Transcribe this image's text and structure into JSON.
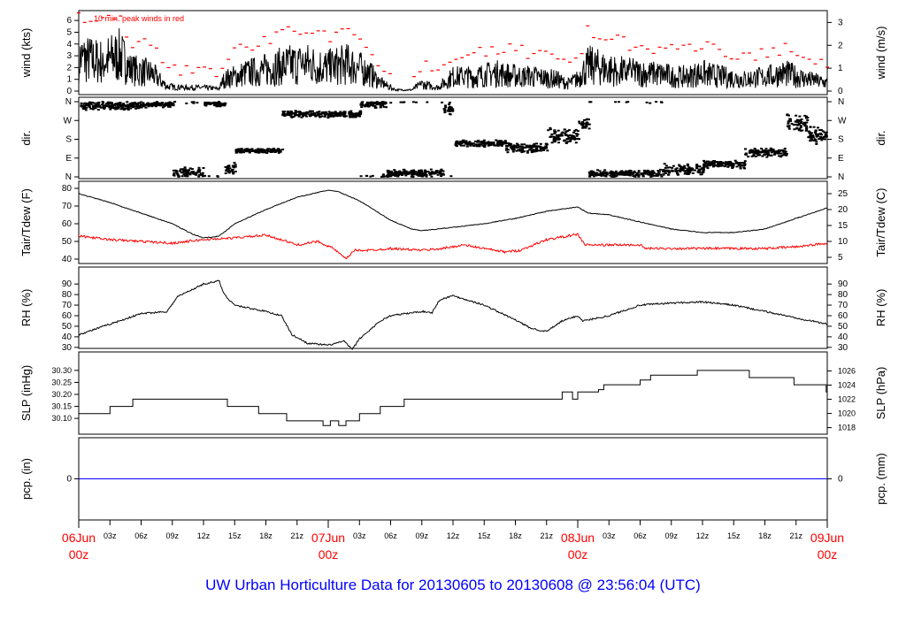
{
  "chart_data": {
    "type": "line",
    "title": "UW Urban Horticulture Data for 20130605  to  20130608 @ 23:56:04  (UTC)",
    "x_hours": [
      0,
      72
    ],
    "x_ticks": [
      {
        "h": 0,
        "label": "06Jun",
        "sub": "00z",
        "major": true
      },
      {
        "h": 3,
        "label": "03z"
      },
      {
        "h": 6,
        "label": "06z"
      },
      {
        "h": 9,
        "label": "09z"
      },
      {
        "h": 12,
        "label": "12z"
      },
      {
        "h": 15,
        "label": "15z"
      },
      {
        "h": 18,
        "label": "18z"
      },
      {
        "h": 21,
        "label": "21z"
      },
      {
        "h": 24,
        "label": "07Jun",
        "sub": "00z",
        "major": true
      },
      {
        "h": 27,
        "label": "03z"
      },
      {
        "h": 30,
        "label": "06z"
      },
      {
        "h": 33,
        "label": "09z"
      },
      {
        "h": 36,
        "label": "12z"
      },
      {
        "h": 39,
        "label": "15z"
      },
      {
        "h": 42,
        "label": "18z"
      },
      {
        "h": 45,
        "label": "21z"
      },
      {
        "h": 48,
        "label": "08Jun",
        "sub": "00z",
        "major": true
      },
      {
        "h": 51,
        "label": "03z"
      },
      {
        "h": 54,
        "label": "06z"
      },
      {
        "h": 57,
        "label": "09z"
      },
      {
        "h": 60,
        "label": "12z"
      },
      {
        "h": 63,
        "label": "15z"
      },
      {
        "h": 66,
        "label": "18z"
      },
      {
        "h": 69,
        "label": "21z"
      },
      {
        "h": 72,
        "label": "09Jun",
        "sub": "00z",
        "major": true
      }
    ],
    "panels": [
      {
        "id": "wind",
        "ylabel": "wind (kts)",
        "y2label": "wind (m/s)",
        "ylim": [
          0,
          6.5
        ],
        "yticks": [
          "0",
          "1",
          "2",
          "3",
          "4",
          "5",
          "6"
        ],
        "y2ticks": [
          "0",
          "1",
          "2",
          "3"
        ],
        "y2factor": 1.944,
        "annotation": "10 min. peak winds in red",
        "mean": [
          [
            0,
            2.8
          ],
          [
            2,
            2.5
          ],
          [
            4,
            3
          ],
          [
            5,
            1.8
          ],
          [
            7,
            1.5
          ],
          [
            8.5,
            0.4
          ],
          [
            10,
            0.3
          ],
          [
            12,
            0.3
          ],
          [
            13.5,
            0.2
          ],
          [
            14,
            1.0
          ],
          [
            16,
            1.5
          ],
          [
            18,
            1.8
          ],
          [
            20,
            2.2
          ],
          [
            22,
            2.3
          ],
          [
            24,
            2.0
          ],
          [
            26,
            2.3
          ],
          [
            28,
            1.5
          ],
          [
            29,
            0.7
          ],
          [
            30.5,
            0.1
          ],
          [
            32,
            0.1
          ],
          [
            33,
            0.6
          ],
          [
            34.5,
            0.3
          ],
          [
            36,
            1.2
          ],
          [
            38,
            1.2
          ],
          [
            40,
            1.5
          ],
          [
            42,
            1.3
          ],
          [
            44,
            1.2
          ],
          [
            46,
            1.0
          ],
          [
            47,
            0.6
          ],
          [
            48,
            1.0
          ],
          [
            49,
            2.2
          ],
          [
            51,
            1.8
          ],
          [
            54,
            1.5
          ],
          [
            56,
            1.4
          ],
          [
            58,
            1.2
          ],
          [
            60,
            1.5
          ],
          [
            62,
            1.2
          ],
          [
            64,
            1.0
          ],
          [
            66,
            1.2
          ],
          [
            68,
            1.5
          ],
          [
            70,
            1.0
          ],
          [
            72,
            0.7
          ]
        ]
      },
      {
        "id": "dir",
        "ylabel": "dir.",
        "y2label": "dir.",
        "ylim": [
          0,
          360
        ],
        "yticks": [
          "N",
          "E",
          "S",
          "W",
          "N"
        ],
        "y2ticks": [
          "N",
          "E",
          "S",
          "W",
          "N"
        ],
        "clusters": [
          [
            0,
            6,
            340,
            15
          ],
          [
            6,
            9,
            345,
            10
          ],
          [
            9,
            12,
            20,
            20
          ],
          [
            12,
            14,
            350,
            10
          ],
          [
            14,
            15,
            40,
            20
          ],
          [
            15,
            19.5,
            125,
            8
          ],
          [
            19.5,
            27,
            300,
            12
          ],
          [
            27,
            29.5,
            350,
            15
          ],
          [
            29.5,
            35,
            15,
            15
          ],
          [
            35,
            36,
            330,
            25
          ],
          [
            36,
            41,
            160,
            12
          ],
          [
            41,
            45,
            140,
            18
          ],
          [
            45,
            48,
            195,
            30
          ],
          [
            48,
            49,
            255,
            25
          ],
          [
            49,
            56,
            15,
            15
          ],
          [
            56,
            60,
            35,
            20
          ],
          [
            60,
            64,
            60,
            15
          ],
          [
            64,
            68,
            115,
            15
          ],
          [
            68,
            70,
            260,
            30
          ],
          [
            70,
            72,
            200,
            30
          ]
        ]
      },
      {
        "id": "temp",
        "ylabel": "Tair/Tdew (F)",
        "y2label": "Tair/Tdew (C)",
        "ylim": [
          37,
          81
        ],
        "yticks": [
          "40",
          "50",
          "60",
          "70",
          "80"
        ],
        "y2ticks": [
          "5",
          "10",
          "15",
          "20",
          "25"
        ],
        "series": [
          {
            "name": "Tair",
            "color": "#000000",
            "points": [
              [
                0,
                77
              ],
              [
                3,
                72
              ],
              [
                6,
                66
              ],
              [
                9,
                60
              ],
              [
                11,
                54
              ],
              [
                12,
                52
              ],
              [
                13.5,
                53
              ],
              [
                15,
                60
              ],
              [
                18,
                68
              ],
              [
                21,
                75
              ],
              [
                24,
                79
              ],
              [
                25,
                78
              ],
              [
                27,
                73
              ],
              [
                30,
                62
              ],
              [
                32,
                57
              ],
              [
                33,
                56
              ],
              [
                36,
                58
              ],
              [
                39,
                60
              ],
              [
                42,
                63
              ],
              [
                45,
                67
              ],
              [
                48,
                69.5
              ],
              [
                49,
                66
              ],
              [
                51,
                65
              ],
              [
                54,
                61
              ],
              [
                57,
                57
              ],
              [
                60,
                55
              ],
              [
                63,
                55
              ],
              [
                66,
                57
              ],
              [
                69,
                63
              ],
              [
                71,
                67
              ],
              [
                72,
                69
              ]
            ]
          },
          {
            "name": "Tdew",
            "color": "#ff0000",
            "points": [
              [
                0,
                53
              ],
              [
                3,
                51
              ],
              [
                6,
                50
              ],
              [
                9,
                49
              ],
              [
                12,
                51
              ],
              [
                15,
                52
              ],
              [
                18,
                53.5
              ],
              [
                19.5,
                51
              ],
              [
                21,
                48
              ],
              [
                23,
                50
              ],
              [
                24.5,
                46
              ],
              [
                25.7,
                40
              ],
              [
                26.5,
                45
              ],
              [
                28,
                45
              ],
              [
                30,
                46
              ],
              [
                33,
                45
              ],
              [
                35,
                46
              ],
              [
                37,
                48
              ],
              [
                39,
                46
              ],
              [
                41,
                44
              ],
              [
                42.5,
                45
              ],
              [
                45,
                51
              ],
              [
                48,
                54
              ],
              [
                48.7,
                48
              ],
              [
                51,
                48
              ],
              [
                54,
                48
              ],
              [
                54.5,
                46
              ],
              [
                60,
                46
              ],
              [
                66,
                46
              ],
              [
                69,
                47
              ],
              [
                72,
                49
              ]
            ]
          }
        ]
      },
      {
        "id": "rh",
        "ylabel": "RH (%)",
        "y2label": "RH (%)",
        "ylim": [
          24,
          96
        ],
        "yticks": [
          "30",
          "40",
          "50",
          "60",
          "70",
          "80",
          "90"
        ],
        "y2ticks": [
          "30",
          "40",
          "50",
          "60",
          "70",
          "80",
          "90"
        ],
        "points": [
          [
            0,
            42
          ],
          [
            3,
            52
          ],
          [
            6,
            62
          ],
          [
            8.5,
            64
          ],
          [
            9.5,
            78
          ],
          [
            12,
            90
          ],
          [
            13.5,
            93
          ],
          [
            14,
            80
          ],
          [
            15,
            70
          ],
          [
            18,
            64
          ],
          [
            19.5,
            60
          ],
          [
            20.5,
            42
          ],
          [
            22,
            34
          ],
          [
            24,
            32
          ],
          [
            25.5,
            36
          ],
          [
            26.3,
            28
          ],
          [
            27,
            38
          ],
          [
            29,
            55
          ],
          [
            30,
            60
          ],
          [
            33,
            64
          ],
          [
            34,
            63
          ],
          [
            34.7,
            75
          ],
          [
            36,
            79
          ],
          [
            39,
            70
          ],
          [
            42,
            56
          ],
          [
            43.5,
            48
          ],
          [
            45,
            45
          ],
          [
            46.5,
            55
          ],
          [
            48,
            60
          ],
          [
            48.5,
            55
          ],
          [
            51,
            60
          ],
          [
            54,
            70
          ],
          [
            57,
            72
          ],
          [
            60,
            73
          ],
          [
            63,
            70
          ],
          [
            66,
            64
          ],
          [
            69,
            58
          ],
          [
            72,
            52
          ]
        ]
      },
      {
        "id": "slp",
        "ylabel": "SLP (inHg)",
        "y2label": "SLP (hPa)",
        "ylim": [
          30.06,
          30.34
        ],
        "yticks": [
          "30.10",
          "30.15",
          "30.20",
          "30.25",
          "30.30"
        ],
        "y2ticks": [
          "1018",
          "1020",
          "1022",
          "1024",
          "1026"
        ],
        "steps": [
          [
            0,
            30.12
          ],
          [
            3,
            30.15
          ],
          [
            5.2,
            30.18
          ],
          [
            14.3,
            30.15
          ],
          [
            17.3,
            30.12
          ],
          [
            20,
            30.09
          ],
          [
            23.5,
            30.07
          ],
          [
            24.2,
            30.09
          ],
          [
            25,
            30.07
          ],
          [
            25.7,
            30.09
          ],
          [
            27,
            30.12
          ],
          [
            29,
            30.15
          ],
          [
            31.3,
            30.18
          ],
          [
            46.5,
            30.21
          ],
          [
            47.5,
            30.18
          ],
          [
            48,
            30.21
          ],
          [
            50,
            30.22
          ],
          [
            50.5,
            30.24
          ],
          [
            54,
            30.26
          ],
          [
            55,
            30.28
          ],
          [
            59.5,
            30.3
          ],
          [
            64.5,
            30.27
          ],
          [
            68.8,
            30.24
          ],
          [
            71.9,
            30.21
          ]
        ]
      },
      {
        "id": "pcp",
        "ylabel": "pcp. (in)",
        "y2label": "pcp. (mm)",
        "ylim": [
          -1,
          1
        ],
        "yticks": [
          "0"
        ],
        "y2ticks": [
          "0"
        ],
        "value": 0,
        "color": "#0000ff"
      }
    ]
  }
}
